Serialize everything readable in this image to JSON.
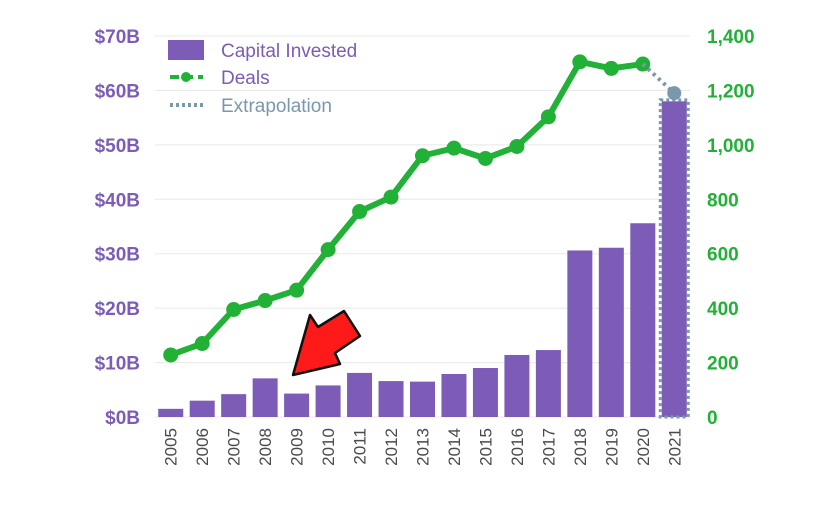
{
  "chart_data": {
    "type": "bar",
    "categories": [
      "2005",
      "2006",
      "2007",
      "2008",
      "2009",
      "2010",
      "2011",
      "2012",
      "2013",
      "2014",
      "2015",
      "2016",
      "2017",
      "2018",
      "2019",
      "2020",
      "2021"
    ],
    "series": [
      {
        "name": "Capital Invested",
        "axis": "left",
        "type": "bar",
        "unit": "$B",
        "values": [
          1.5,
          3.0,
          4.2,
          7.1,
          4.3,
          5.8,
          8.1,
          6.6,
          6.5,
          7.9,
          9.0,
          11.4,
          12.3,
          30.6,
          31.1,
          35.6,
          58.0
        ]
      },
      {
        "name": "Deals",
        "axis": "right",
        "type": "line",
        "values": [
          228,
          270,
          395,
          428,
          466,
          615,
          755,
          808,
          960,
          988,
          950,
          994,
          1103,
          1305,
          1281,
          1297,
          null
        ]
      },
      {
        "name": "Extrapolation",
        "type": "dotted",
        "note_values": {
          "deals_2021": 1190,
          "capital_2021": 58.0
        }
      }
    ],
    "y_left": {
      "ylim": [
        0,
        70
      ],
      "ticks": [
        "$0B",
        "$10B",
        "$20B",
        "$30B",
        "$40B",
        "$50B",
        "$60B",
        "$70B"
      ],
      "tick_values": [
        0,
        10,
        20,
        30,
        40,
        50,
        60,
        70
      ]
    },
    "y_right": {
      "ylim": [
        0,
        1400
      ],
      "ticks": [
        "0",
        "200",
        "400",
        "600",
        "800",
        "1,000",
        "1,200",
        "1,400"
      ],
      "tick_values": [
        0,
        200,
        400,
        600,
        800,
        1000,
        1200,
        1400
      ]
    },
    "legend": {
      "placement": "top-left",
      "entries": [
        "Capital Invested",
        "Deals",
        "Extrapolation"
      ]
    },
    "grid": true,
    "annotation": {
      "type": "red-arrow",
      "points_to": "2009"
    },
    "colors": {
      "bar": "#7c5cb6",
      "deals": "#21b136",
      "extrapolation": "#7a98ad",
      "arrow": "#ff1a1a",
      "grid": "#e8e8e8"
    }
  }
}
